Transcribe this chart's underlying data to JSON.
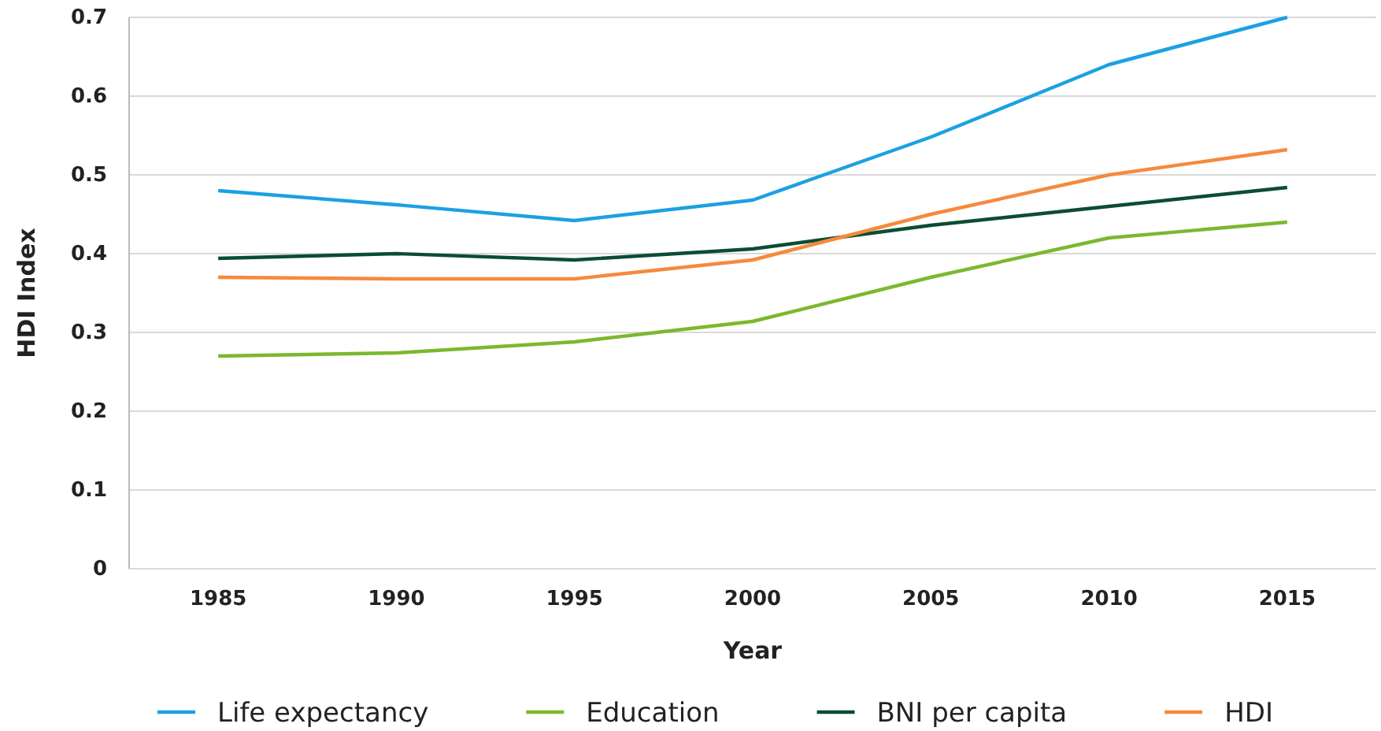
{
  "chart_data": {
    "type": "line",
    "xlabel": "Year",
    "ylabel": "HDI Index",
    "categories": [
      "1985",
      "1990",
      "1995",
      "2000",
      "2005",
      "2010",
      "2015"
    ],
    "series": [
      {
        "name": "Life expectancy",
        "color": "#1ba1e2",
        "values": [
          0.48,
          0.462,
          0.442,
          0.468,
          0.548,
          0.64,
          0.7
        ]
      },
      {
        "name": "Education",
        "color": "#7cb82f",
        "values": [
          0.27,
          0.274,
          0.288,
          0.314,
          0.37,
          0.42,
          0.44
        ]
      },
      {
        "name": "BNI per capita",
        "color": "#0b4d32",
        "values": [
          0.394,
          0.4,
          0.392,
          0.406,
          0.436,
          0.46,
          0.484
        ]
      },
      {
        "name": "HDI",
        "color": "#f58a3c",
        "values": [
          0.37,
          0.368,
          0.368,
          0.392,
          0.45,
          0.5,
          0.532
        ]
      }
    ],
    "ylim": [
      0,
      0.7
    ],
    "yticks": [
      0,
      0.1,
      0.2,
      0.3,
      0.4,
      0.5,
      0.6,
      0.7
    ],
    "grid": "y",
    "legend": "bottom",
    "marker": "none",
    "line_style": "solid"
  }
}
